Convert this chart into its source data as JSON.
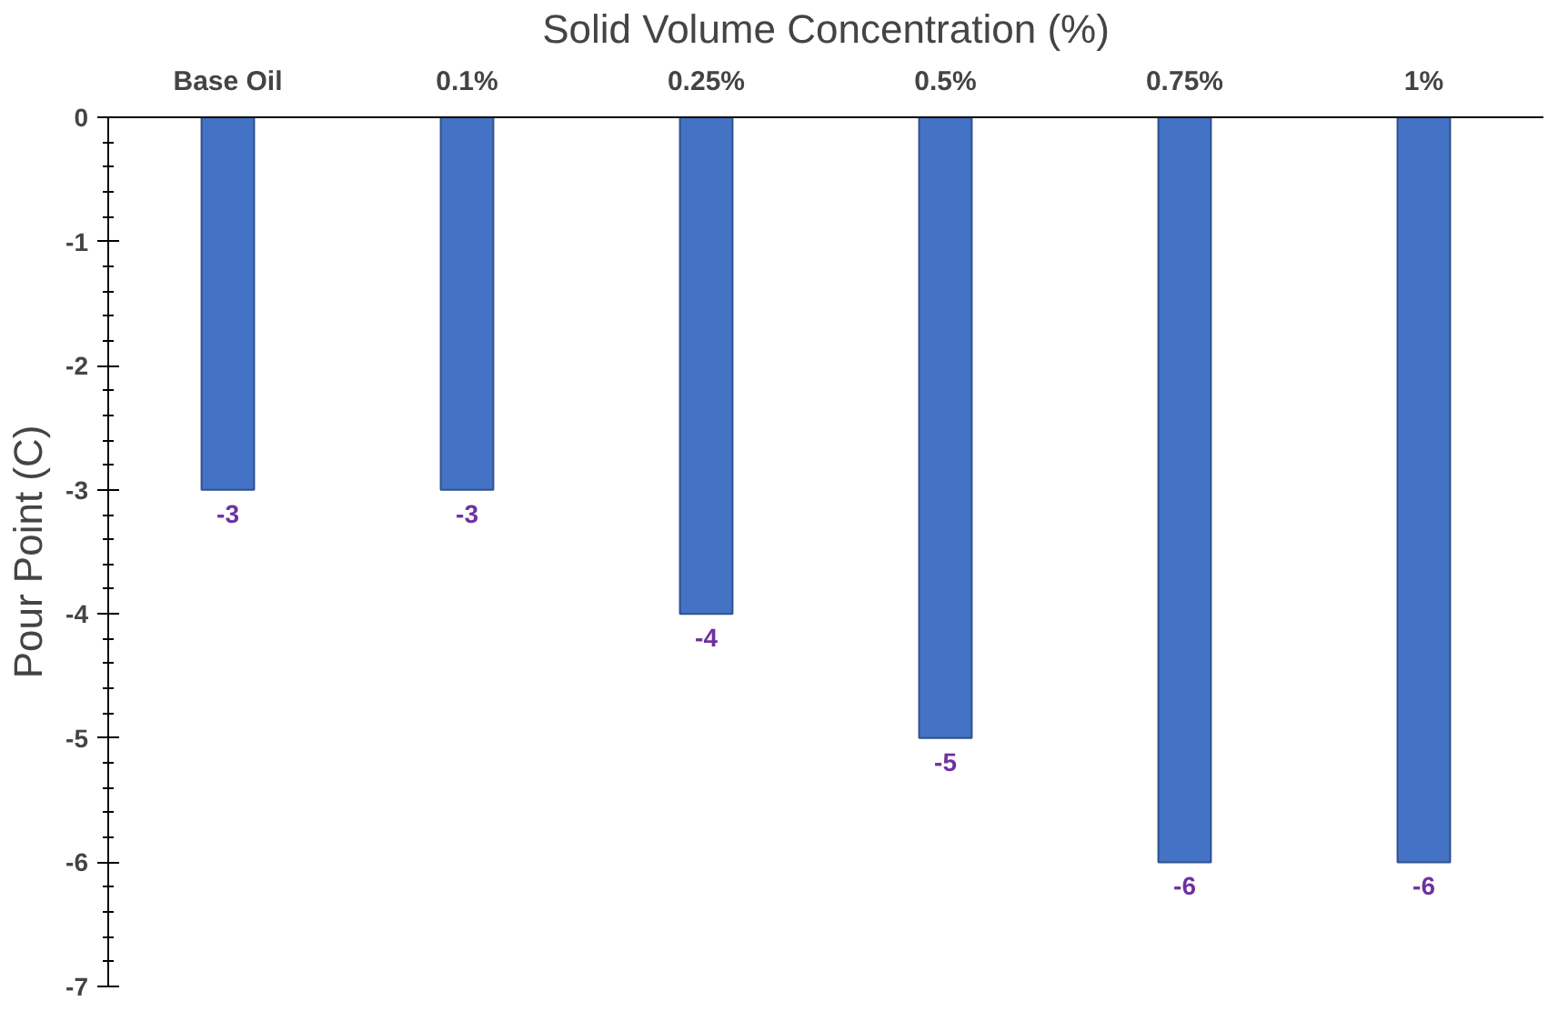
{
  "chart_data": {
    "type": "bar",
    "xlabel": "Solid Volume Concentration (%)",
    "ylabel": "Pour Point (C)",
    "categories": [
      "Base Oil",
      "0.1%",
      "0.25%",
      "0.5%",
      "0.75%",
      "1%"
    ],
    "values": [
      -3,
      -3,
      -4,
      -5,
      -6,
      -6
    ],
    "color": "#4472c4",
    "ylim": [
      -7,
      0
    ],
    "yticks": [
      0,
      -1,
      -2,
      -3,
      -4,
      -5,
      -6,
      -7
    ],
    "data_labels": true,
    "grid": false
  }
}
